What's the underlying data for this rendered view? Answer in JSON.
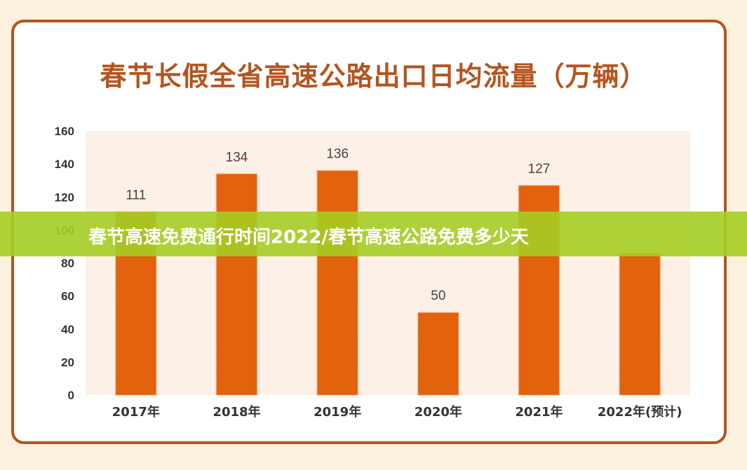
{
  "colors": {
    "background": "#fbf1dc",
    "frame": "#b5541f",
    "plot_area": "#fdf0e6",
    "bar": "#e2620e",
    "banner": "#a5cd23",
    "banner_text": "#ffffff"
  },
  "banner": {
    "text": "春节高速免费通行时间2022/春节高速公路免费多少天"
  },
  "chart_data": {
    "type": "bar",
    "title": "春节长假全省高速公路出口日均流量（万辆）",
    "categories": [
      "2017年",
      "2018年",
      "2019年",
      "2020年",
      "2021年",
      "2022年(预计)"
    ],
    "values": [
      111,
      134,
      136,
      50,
      127,
      86
    ],
    "data_labels": [
      "111",
      "134",
      "136",
      "50",
      "127",
      null
    ],
    "ylim": [
      0,
      160
    ],
    "yticks": [
      0,
      20,
      40,
      60,
      80,
      100,
      120,
      140,
      160
    ],
    "grid": false,
    "legend": "none"
  }
}
